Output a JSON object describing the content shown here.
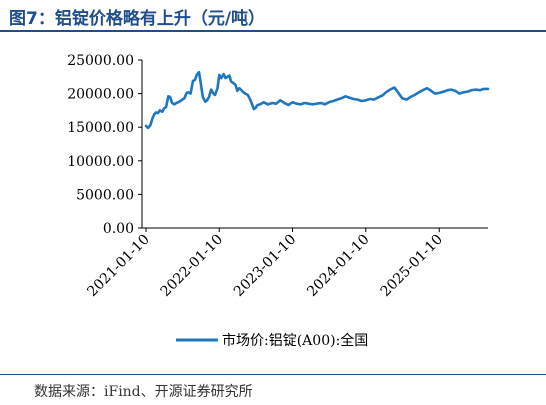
{
  "title": "图7：铝锭价格略有上升（元/吨）",
  "source": "数据来源：iFind、开源证券研究所",
  "colors": {
    "series": "#1f77c0",
    "title": "#1f4e8c",
    "axis": "#000000"
  },
  "chart_data": {
    "type": "line",
    "ylim": [
      0,
      25000
    ],
    "yticks": [
      0,
      5000,
      10000,
      15000,
      20000,
      25000
    ],
    "ytick_labels": [
      "0.00",
      "5000.00",
      "10000.00",
      "15000.00",
      "20000.00",
      "25000.00"
    ],
    "xticks": [
      "2021-01-10",
      "2022-01-10",
      "2023-01-10",
      "2024-01-10",
      "2025-01-10"
    ],
    "legend_position": "bottom",
    "series": [
      {
        "name": "市场价:铝锭(A00):全国",
        "x": [
          "2021-01-10",
          "2021-01-20",
          "2021-02-01",
          "2021-02-10",
          "2021-02-20",
          "2021-03-01",
          "2021-03-10",
          "2021-03-20",
          "2021-04-01",
          "2021-04-10",
          "2021-04-20",
          "2021-05-01",
          "2021-05-10",
          "2021-05-20",
          "2021-06-01",
          "2021-06-10",
          "2021-06-20",
          "2021-07-01",
          "2021-07-10",
          "2021-07-20",
          "2021-08-01",
          "2021-08-10",
          "2021-08-20",
          "2021-09-01",
          "2021-09-10",
          "2021-09-20",
          "2021-10-01",
          "2021-10-10",
          "2021-10-20",
          "2021-11-01",
          "2021-11-10",
          "2021-11-20",
          "2021-12-01",
          "2021-12-10",
          "2021-12-20",
          "2022-01-01",
          "2022-01-10",
          "2022-01-20",
          "2022-02-01",
          "2022-02-10",
          "2022-02-20",
          "2022-03-01",
          "2022-03-10",
          "2022-03-20",
          "2022-04-01",
          "2022-04-10",
          "2022-04-20",
          "2022-05-01",
          "2022-05-10",
          "2022-05-20",
          "2022-06-01",
          "2022-06-10",
          "2022-06-20",
          "2022-07-01",
          "2022-07-10",
          "2022-07-20",
          "2022-08-01",
          "2022-08-20",
          "2022-09-10",
          "2022-10-01",
          "2022-10-20",
          "2022-11-10",
          "2022-12-01",
          "2022-12-20",
          "2023-01-10",
          "2023-02-01",
          "2023-02-20",
          "2023-03-10",
          "2023-04-01",
          "2023-04-20",
          "2023-05-10",
          "2023-06-01",
          "2023-06-20",
          "2023-07-10",
          "2023-08-01",
          "2023-08-20",
          "2023-09-10",
          "2023-10-01",
          "2023-10-20",
          "2023-11-10",
          "2023-12-01",
          "2023-12-20",
          "2024-01-10",
          "2024-02-01",
          "2024-02-20",
          "2024-03-10",
          "2024-04-01",
          "2024-04-20",
          "2024-05-10",
          "2024-06-01",
          "2024-06-20",
          "2024-07-10",
          "2024-08-01",
          "2024-08-20",
          "2024-09-10",
          "2024-10-01",
          "2024-10-20",
          "2024-11-10",
          "2024-12-01",
          "2024-12-20",
          "2025-01-10",
          "2025-02-01",
          "2025-02-20",
          "2025-03-10",
          "2025-04-01",
          "2025-04-20",
          "2025-05-10",
          "2025-06-01",
          "2025-06-20",
          "2025-07-10",
          "2025-08-01",
          "2025-08-20",
          "2025-09-10"
        ],
        "values": [
          15200,
          14900,
          15300,
          16200,
          16900,
          17200,
          17100,
          17500,
          17300,
          17800,
          18000,
          19600,
          19500,
          18600,
          18400,
          18600,
          18700,
          18900,
          19100,
          19300,
          20100,
          20200,
          20000,
          21900,
          22000,
          22800,
          23200,
          21500,
          19500,
          18800,
          19000,
          19500,
          20600,
          20100,
          19800,
          20800,
          22800,
          22300,
          22900,
          22300,
          22500,
          22700,
          21800,
          21600,
          21300,
          20400,
          20800,
          20500,
          20200,
          20000,
          19800,
          19300,
          18600,
          17700,
          17900,
          18300,
          18400,
          18700,
          18400,
          18600,
          18500,
          19000,
          18600,
          18300,
          18700,
          18500,
          18400,
          18600,
          18500,
          18400,
          18500,
          18600,
          18400,
          18700,
          18900,
          19100,
          19300,
          19600,
          19400,
          19200,
          19100,
          18900,
          19000,
          19200,
          19100,
          19400,
          19700,
          20200,
          20600,
          20900,
          20100,
          19300,
          19100,
          19500,
          19800,
          20200,
          20500,
          20800,
          20400,
          20000,
          20100,
          20300,
          20500,
          20600,
          20400,
          20000,
          20200,
          20300,
          20500,
          20600,
          20500,
          20700,
          20700
        ]
      }
    ]
  }
}
